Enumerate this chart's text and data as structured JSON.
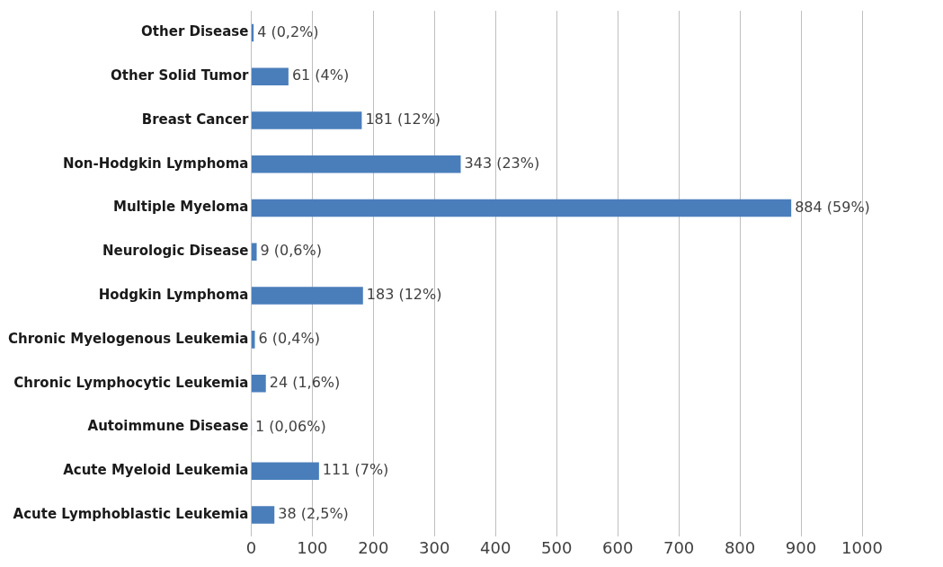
{
  "chart_data": {
    "type": "bar",
    "orientation": "horizontal",
    "categories": [
      "Other Disease",
      "Other Solid Tumor",
      "Breast Cancer",
      "Non-Hodgkin Lymphoma",
      "Multiple Myeloma",
      "Neurologic Disease",
      "Hodgkin Lymphoma",
      "Chronic Myelogenous Leukemia",
      "Chronic Lymphocytic Leukemia",
      "Autoimmune Disease",
      "Acute Myeloid Leukemia",
      "Acute Lymphoblastic Leukemia"
    ],
    "values": [
      4,
      61,
      181,
      343,
      884,
      9,
      183,
      6,
      24,
      1,
      111,
      38
    ],
    "value_labels": [
      "4 (0,2%)",
      "61 (4%)",
      "181 (12%)",
      "343 (23%)",
      "884 (59%)",
      "9 (0,6%)",
      "183 (12%)",
      "6 (0,4%)",
      "24 (1,6%)",
      "1 (0,06%)",
      "111 (7%)",
      "38 (2,5%)"
    ],
    "color": "#4a7ebb",
    "xlim": [
      0,
      1000
    ],
    "xticks": [
      0,
      100,
      200,
      300,
      400,
      500,
      600,
      700,
      800,
      900,
      1000
    ],
    "grid": "x",
    "legend": false
  }
}
